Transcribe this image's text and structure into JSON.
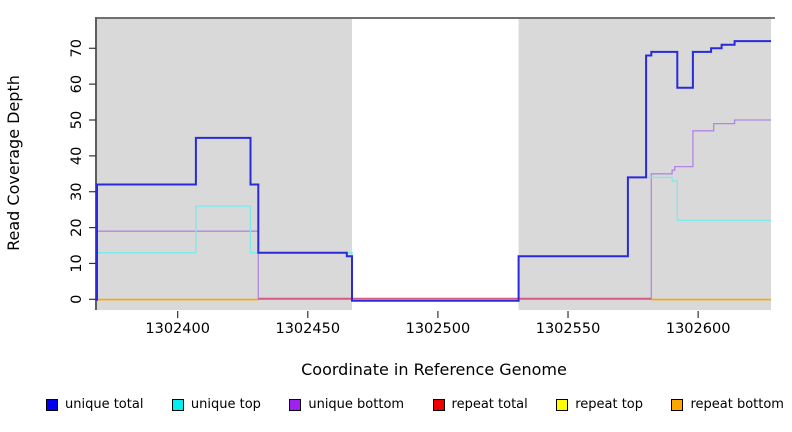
{
  "figure": {
    "kind": "read-coverage-step-plot"
  },
  "chart_data": {
    "type": "line",
    "subtype": "step-coverage",
    "title": "",
    "xlabel": "Coordinate in Reference Genome",
    "ylabel": "Read Coverage Depth",
    "xlim": [
      1302369,
      1302628
    ],
    "ylim": [
      0,
      78
    ],
    "x_ticks": [
      1302400,
      1302450,
      1302500,
      1302550,
      1302600
    ],
    "y_ticks": [
      0,
      10,
      20,
      30,
      40,
      50,
      60,
      70
    ],
    "grid": false,
    "legend_position": "bottom",
    "panel_bg": "#d9d9d9",
    "gap_region": {
      "from": 1302467,
      "to": 1302531,
      "fill": "#ffffff"
    },
    "axis_color": "#1a1a1a",
    "top_border_color": "#4d4d4d",
    "series": [
      {
        "name": "unique total",
        "legend_color": "#0000ee",
        "line_color": "#2a2ada",
        "line_width": 2,
        "steps": [
          [
            1302369,
            32
          ],
          [
            1302407,
            45
          ],
          [
            1302428,
            32
          ],
          [
            1302431,
            13
          ],
          [
            1302465,
            12
          ],
          [
            1302467,
            0
          ],
          [
            1302531,
            12
          ],
          [
            1302573,
            34
          ],
          [
            1302580,
            68
          ],
          [
            1302582,
            69
          ],
          [
            1302592,
            59
          ],
          [
            1302598,
            69
          ],
          [
            1302605,
            70
          ],
          [
            1302609,
            71
          ],
          [
            1302614,
            72
          ],
          [
            1302628,
            72
          ]
        ]
      },
      {
        "name": "unique top",
        "legend_color": "#00eeee",
        "line_color": "#7de9ec",
        "line_width": 1.3,
        "steps": [
          [
            1302369,
            13
          ],
          [
            1302407,
            26
          ],
          [
            1302428,
            13
          ],
          [
            1302467,
            0
          ],
          [
            1302531,
            12
          ],
          [
            1302573,
            34
          ],
          [
            1302590,
            33
          ],
          [
            1302592,
            22
          ],
          [
            1302628,
            22
          ]
        ]
      },
      {
        "name": "unique bottom",
        "legend_color": "#a020f0",
        "line_color": "#b286e2",
        "line_width": 1.3,
        "steps": [
          [
            1302369,
            19
          ],
          [
            1302431,
            0
          ],
          [
            1302582,
            35
          ],
          [
            1302590,
            36
          ],
          [
            1302591,
            37
          ],
          [
            1302598,
            47
          ],
          [
            1302606,
            49
          ],
          [
            1302614,
            50
          ],
          [
            1302628,
            50
          ]
        ]
      },
      {
        "name": "repeat total",
        "legend_color": "#ee0000",
        "line_color": "#d85a82",
        "line_width": 1.3,
        "steps": [
          [
            1302369,
            0
          ],
          [
            1302628,
            0
          ]
        ]
      },
      {
        "name": "repeat top",
        "legend_color": "#ffff00",
        "line_color": "#ffff00",
        "line_width": 1.3,
        "steps": [
          [
            1302369,
            0
          ],
          [
            1302628,
            0
          ]
        ]
      },
      {
        "name": "repeat bottom",
        "legend_color": "#ffa500",
        "line_color": "#ffa500",
        "line_width": 1.6,
        "steps": [
          [
            1302369,
            0
          ],
          [
            1302628,
            0
          ]
        ]
      }
    ],
    "baseline_segments": [
      {
        "color": "#ffa500",
        "from": 1302369,
        "to": 1302431
      },
      {
        "color": "#d85a82",
        "from": 1302431,
        "to": 1302582
      },
      {
        "color": "#ffa500",
        "from": 1302582,
        "to": 1302628
      }
    ]
  }
}
